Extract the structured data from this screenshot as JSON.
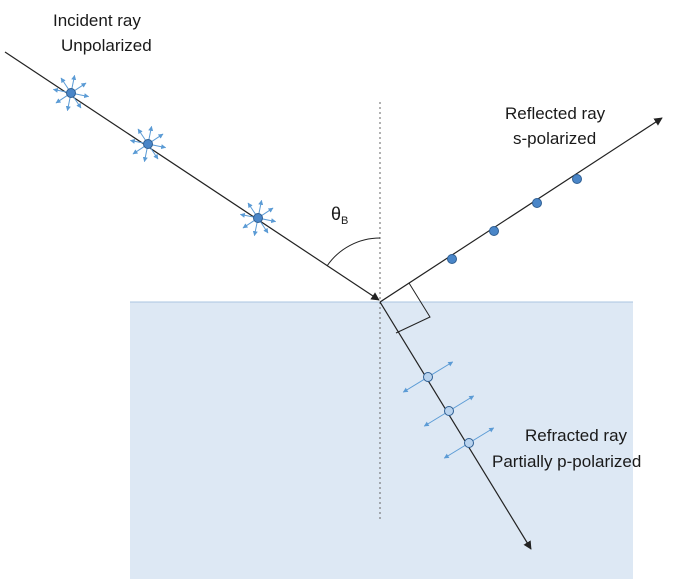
{
  "labels": {
    "incident_line1": "Incident ray",
    "incident_line2": "Unpolarized",
    "reflected_line1": "Reflected ray",
    "reflected_line2": "s-polarized",
    "refracted_line1": "Refracted ray",
    "refracted_line2": "Partially p-polarized",
    "angle_symbol": "θ",
    "angle_subscript": "B"
  },
  "colors": {
    "medium_fill": "#dde8f4",
    "medium_edge": "#aac4e0",
    "dot_fill": "#4a86c8",
    "dot_fill_light": "#b9d3ee",
    "dot_stroke": "#2f5f93",
    "arrow_color": "#5b9bd5",
    "ray_color": "#222222"
  }
}
